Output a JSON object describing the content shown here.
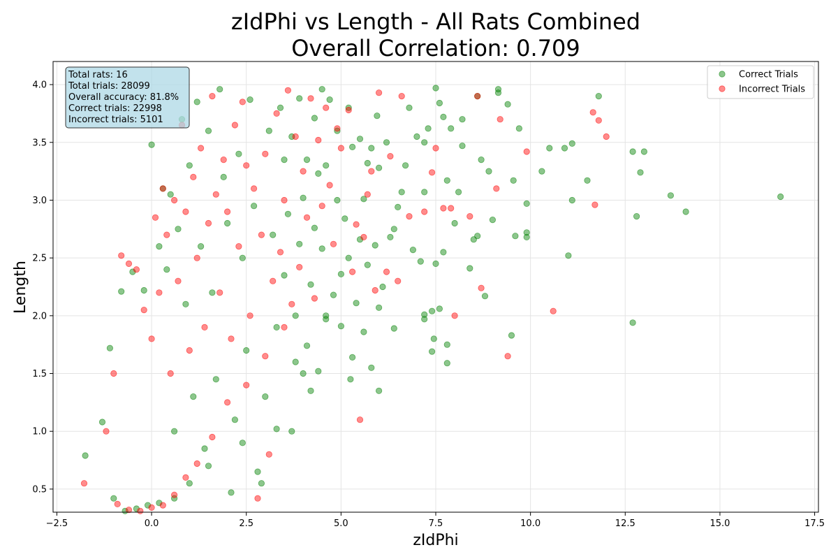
{
  "chart_data": {
    "type": "scatter",
    "title": "zIdPhi vs Length - All Rats Combined",
    "subtitle": "Overall Correlation: 0.709",
    "xlabel": "zIdPhi",
    "ylabel": "Length",
    "xlim": [
      -2.5,
      17.5
    ],
    "ylim": [
      0.3,
      4.2
    ],
    "x_ticks": [
      -2.5,
      0.0,
      2.5,
      5.0,
      7.5,
      10.0,
      12.5,
      15.0,
      17.5
    ],
    "x_tick_labels": [
      "−2.5",
      "0.0",
      "2.5",
      "5.0",
      "7.5",
      "10.0",
      "12.5",
      "15.0",
      "17.5"
    ],
    "y_ticks": [
      0.5,
      1.0,
      1.5,
      2.0,
      2.5,
      3.0,
      3.5,
      4.0
    ],
    "y_tick_labels": [
      "0.5",
      "1.0",
      "1.5",
      "2.0",
      "2.5",
      "3.0",
      "3.5",
      "4.0"
    ],
    "grid": true,
    "legend_position": "top-right",
    "stats_box_position": "top-left",
    "stats_box": [
      "Total rats: 16",
      "Total trials: 28099",
      "Overall accuracy: 81.8%",
      "Correct trials: 22998",
      "Incorrect trials: 5101"
    ],
    "series": [
      {
        "name": "Correct Trials",
        "color": "#008000",
        "opacity": 0.45,
        "points": [
          [
            16.6,
            3.03
          ],
          [
            14.1,
            2.9
          ],
          [
            13.7,
            3.04
          ],
          [
            12.8,
            2.86
          ],
          [
            12.7,
            3.42
          ],
          [
            13.0,
            3.42
          ],
          [
            12.9,
            3.24
          ],
          [
            12.7,
            1.94
          ],
          [
            11.8,
            3.9
          ],
          [
            11.5,
            3.17
          ],
          [
            11.1,
            3.49
          ],
          [
            11.1,
            3.0
          ],
          [
            11.0,
            2.52
          ],
          [
            10.9,
            3.45
          ],
          [
            10.5,
            3.45
          ],
          [
            10.3,
            3.25
          ],
          [
            9.9,
            2.97
          ],
          [
            9.9,
            2.72
          ],
          [
            9.9,
            2.68
          ],
          [
            9.7,
            3.62
          ],
          [
            9.6,
            2.69
          ],
          [
            9.55,
            3.17
          ],
          [
            9.5,
            1.83
          ],
          [
            9.4,
            3.83
          ],
          [
            9.15,
            3.96
          ],
          [
            9.15,
            3.93
          ],
          [
            9.0,
            2.83
          ],
          [
            8.9,
            3.25
          ],
          [
            8.8,
            2.17
          ],
          [
            8.7,
            3.35
          ],
          [
            8.6,
            3.9
          ],
          [
            8.6,
            2.69
          ],
          [
            8.5,
            2.66
          ],
          [
            8.4,
            2.41
          ],
          [
            8.2,
            3.47
          ],
          [
            8.2,
            3.7
          ],
          [
            8.1,
            3.07
          ],
          [
            8.0,
            2.8
          ],
          [
            7.9,
            3.62
          ],
          [
            7.8,
            3.17
          ],
          [
            7.8,
            1.75
          ],
          [
            7.8,
            1.59
          ],
          [
            7.7,
            3.72
          ],
          [
            7.7,
            2.55
          ],
          [
            7.6,
            3.84
          ],
          [
            7.6,
            2.06
          ],
          [
            7.5,
            3.97
          ],
          [
            7.5,
            2.45
          ],
          [
            7.45,
            1.8
          ],
          [
            7.4,
            2.04
          ],
          [
            7.4,
            1.69
          ],
          [
            7.3,
            3.62
          ],
          [
            7.2,
            3.5
          ],
          [
            7.2,
            3.07
          ],
          [
            7.2,
            2.01
          ],
          [
            7.2,
            1.97
          ],
          [
            7.1,
            2.47
          ],
          [
            7.0,
            3.55
          ],
          [
            6.9,
            2.57
          ],
          [
            6.8,
            3.8
          ],
          [
            6.7,
            3.3
          ],
          [
            6.6,
            3.07
          ],
          [
            6.5,
            2.94
          ],
          [
            6.4,
            2.75
          ],
          [
            6.4,
            1.89
          ],
          [
            6.3,
            2.68
          ],
          [
            6.2,
            3.5
          ],
          [
            6.1,
            2.25
          ],
          [
            6.0,
            3.28
          ],
          [
            6.0,
            2.07
          ],
          [
            6.0,
            1.35
          ],
          [
            5.95,
            3.73
          ],
          [
            5.9,
            2.61
          ],
          [
            5.8,
            3.45
          ],
          [
            5.8,
            1.55
          ],
          [
            5.7,
            3.32
          ],
          [
            5.7,
            2.44
          ],
          [
            5.6,
            3.01
          ],
          [
            5.6,
            1.86
          ],
          [
            5.5,
            3.53
          ],
          [
            5.5,
            2.66
          ],
          [
            5.4,
            2.11
          ],
          [
            5.3,
            3.46
          ],
          [
            5.3,
            1.64
          ],
          [
            5.25,
            1.45
          ],
          [
            5.2,
            3.8
          ],
          [
            5.1,
            2.84
          ],
          [
            5.0,
            2.36
          ],
          [
            5.0,
            1.91
          ],
          [
            4.9,
            3.6
          ],
          [
            4.9,
            3.0
          ],
          [
            4.8,
            2.18
          ],
          [
            4.7,
            3.87
          ],
          [
            4.6,
            3.3
          ],
          [
            4.6,
            1.97
          ],
          [
            4.5,
            3.96
          ],
          [
            4.5,
            2.58
          ],
          [
            4.4,
            3.23
          ],
          [
            4.4,
            1.52
          ],
          [
            4.3,
            3.71
          ],
          [
            4.3,
            2.76
          ],
          [
            4.2,
            2.27
          ],
          [
            4.1,
            3.35
          ],
          [
            4.1,
            1.74
          ],
          [
            4.0,
            3.02
          ],
          [
            4.0,
            1.5
          ],
          [
            3.9,
            3.88
          ],
          [
            3.9,
            2.62
          ],
          [
            3.8,
            2.0
          ],
          [
            3.7,
            3.55
          ],
          [
            3.7,
            1.0
          ],
          [
            3.6,
            2.88
          ],
          [
            3.5,
            3.35
          ],
          [
            3.5,
            2.35
          ],
          [
            3.4,
            3.8
          ],
          [
            3.3,
            1.9
          ],
          [
            3.2,
            2.7
          ],
          [
            3.1,
            3.6
          ],
          [
            3.0,
            1.3
          ],
          [
            2.9,
            0.55
          ],
          [
            2.8,
            0.65
          ],
          [
            2.7,
            2.95
          ],
          [
            2.6,
            3.87
          ],
          [
            2.5,
            1.7
          ],
          [
            2.4,
            2.5
          ],
          [
            2.3,
            3.4
          ],
          [
            2.2,
            1.1
          ],
          [
            2.1,
            0.47
          ],
          [
            2.0,
            2.8
          ],
          [
            1.9,
            3.2
          ],
          [
            1.8,
            3.96
          ],
          [
            1.7,
            1.45
          ],
          [
            1.6,
            2.2
          ],
          [
            1.5,
            3.6
          ],
          [
            1.4,
            0.85
          ],
          [
            1.3,
            2.6
          ],
          [
            1.2,
            3.85
          ],
          [
            1.1,
            1.3
          ],
          [
            1.0,
            3.3
          ],
          [
            0.9,
            2.1
          ],
          [
            0.8,
            3.7
          ],
          [
            0.7,
            2.75
          ],
          [
            0.6,
            1.0
          ],
          [
            0.5,
            3.05
          ],
          [
            0.4,
            2.4
          ],
          [
            0.3,
            3.1
          ],
          [
            0.2,
            2.6
          ],
          [
            0.0,
            3.48
          ],
          [
            -0.2,
            2.22
          ],
          [
            -0.5,
            2.38
          ],
          [
            -0.8,
            2.21
          ],
          [
            -1.1,
            1.72
          ],
          [
            -1.3,
            1.08
          ],
          [
            -1.75,
            0.79
          ],
          [
            -1.0,
            0.42
          ],
          [
            -0.7,
            0.31
          ],
          [
            -0.4,
            0.33
          ],
          [
            -0.1,
            0.36
          ],
          [
            0.2,
            0.38
          ],
          [
            0.6,
            0.42
          ],
          [
            1.0,
            0.55
          ],
          [
            1.5,
            0.7
          ],
          [
            2.4,
            0.9
          ],
          [
            3.3,
            1.02
          ],
          [
            4.2,
            1.35
          ],
          [
            3.8,
            1.6
          ],
          [
            4.6,
            2.0
          ],
          [
            5.2,
            2.5
          ]
        ]
      },
      {
        "name": "Incorrect Trials",
        "color": "#ff0000",
        "opacity": 0.45,
        "points": [
          [
            12.0,
            3.55
          ],
          [
            11.8,
            3.69
          ],
          [
            11.65,
            3.76
          ],
          [
            11.7,
            2.96
          ],
          [
            10.6,
            2.04
          ],
          [
            9.9,
            3.42
          ],
          [
            9.4,
            1.65
          ],
          [
            9.2,
            3.7
          ],
          [
            9.1,
            3.1
          ],
          [
            8.7,
            2.24
          ],
          [
            8.6,
            3.9
          ],
          [
            8.4,
            2.86
          ],
          [
            8.0,
            2.0
          ],
          [
            7.9,
            2.93
          ],
          [
            7.7,
            2.93
          ],
          [
            7.5,
            3.45
          ],
          [
            7.4,
            3.24
          ],
          [
            7.2,
            2.9
          ],
          [
            6.8,
            2.86
          ],
          [
            6.6,
            3.9
          ],
          [
            6.5,
            2.3
          ],
          [
            6.3,
            3.38
          ],
          [
            6.2,
            2.38
          ],
          [
            6.0,
            3.93
          ],
          [
            5.9,
            2.22
          ],
          [
            5.8,
            3.25
          ],
          [
            5.7,
            3.05
          ],
          [
            5.6,
            2.68
          ],
          [
            5.5,
            1.1
          ],
          [
            5.4,
            2.79
          ],
          [
            5.3,
            2.38
          ],
          [
            5.2,
            3.78
          ],
          [
            5.0,
            3.45
          ],
          [
            4.9,
            3.62
          ],
          [
            4.8,
            2.62
          ],
          [
            4.7,
            3.13
          ],
          [
            4.6,
            3.8
          ],
          [
            4.5,
            2.95
          ],
          [
            4.4,
            3.52
          ],
          [
            4.3,
            2.15
          ],
          [
            4.2,
            3.88
          ],
          [
            4.1,
            2.85
          ],
          [
            4.0,
            3.25
          ],
          [
            3.9,
            2.42
          ],
          [
            3.8,
            3.55
          ],
          [
            3.7,
            2.1
          ],
          [
            3.6,
            3.95
          ],
          [
            3.5,
            3.0
          ],
          [
            3.4,
            2.55
          ],
          [
            3.3,
            3.75
          ],
          [
            3.2,
            2.3
          ],
          [
            3.1,
            0.8
          ],
          [
            3.0,
            3.4
          ],
          [
            2.9,
            2.7
          ],
          [
            2.8,
            0.42
          ],
          [
            2.7,
            3.1
          ],
          [
            2.6,
            2.0
          ],
          [
            2.5,
            3.3
          ],
          [
            2.4,
            3.85
          ],
          [
            2.3,
            2.6
          ],
          [
            2.2,
            3.65
          ],
          [
            2.1,
            1.8
          ],
          [
            2.0,
            2.9
          ],
          [
            1.9,
            3.35
          ],
          [
            1.8,
            2.2
          ],
          [
            1.7,
            3.05
          ],
          [
            1.6,
            3.9
          ],
          [
            1.5,
            2.8
          ],
          [
            1.4,
            1.9
          ],
          [
            1.3,
            3.45
          ],
          [
            1.2,
            2.5
          ],
          [
            1.1,
            3.2
          ],
          [
            1.0,
            1.7
          ],
          [
            0.9,
            2.9
          ],
          [
            0.8,
            3.65
          ],
          [
            0.7,
            2.3
          ],
          [
            0.6,
            3.0
          ],
          [
            0.5,
            1.5
          ],
          [
            0.4,
            2.7
          ],
          [
            0.3,
            3.1
          ],
          [
            0.2,
            2.2
          ],
          [
            0.1,
            2.85
          ],
          [
            0.0,
            1.8
          ],
          [
            -0.2,
            2.05
          ],
          [
            -0.4,
            2.4
          ],
          [
            -0.6,
            2.45
          ],
          [
            -0.8,
            2.52
          ],
          [
            -1.0,
            1.5
          ],
          [
            -1.2,
            1.0
          ],
          [
            -1.78,
            0.55
          ],
          [
            -0.9,
            0.37
          ],
          [
            -0.6,
            0.32
          ],
          [
            -0.3,
            0.31
          ],
          [
            0.0,
            0.34
          ],
          [
            0.3,
            0.36
          ],
          [
            0.6,
            0.45
          ],
          [
            0.9,
            0.6
          ],
          [
            1.2,
            0.72
          ],
          [
            1.6,
            0.95
          ],
          [
            2.0,
            1.25
          ],
          [
            2.5,
            1.4
          ],
          [
            3.0,
            1.65
          ],
          [
            3.5,
            1.9
          ]
        ]
      }
    ]
  }
}
